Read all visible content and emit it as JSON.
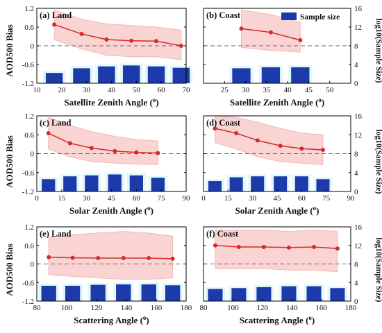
{
  "figure": {
    "left_ylabel": "AOD500 Bias",
    "right_ylabel": "log10(Sample Size)",
    "legend_label": "Sample size",
    "colors": {
      "line": "#d42a2a",
      "band": "#f6b6b6",
      "bar": "#1c3aa9",
      "cyan": "#c8f3f7",
      "dash": "#666666"
    }
  },
  "chart_data": [
    {
      "type": "line+bar",
      "title": "(a) Land",
      "xlabel": "Satellite Zenith Angle (o)",
      "xlim": [
        10,
        70
      ],
      "xticks": [
        10,
        20,
        30,
        40,
        50,
        60,
        70
      ],
      "ylim": [
        -1.2,
        1.2
      ],
      "yticks": [
        -1.2,
        -0.6,
        0,
        0.6,
        1.2
      ],
      "ytick_labels": [
        "-1.2",
        "-0.6",
        "0",
        "0.6",
        "1.2"
      ],
      "y2lim": [
        0,
        16
      ],
      "y2ticks": [
        0,
        4,
        8,
        12,
        16
      ],
      "x": [
        17,
        28,
        38,
        48,
        58,
        68
      ],
      "mean_bias": [
        0.68,
        0.38,
        0.2,
        0.16,
        0.15,
        0.0
      ],
      "band_upper": [
        1.15,
        0.85,
        0.7,
        0.65,
        0.6,
        0.5
      ],
      "band_lower": [
        0.2,
        -0.1,
        -0.3,
        -0.35,
        -0.35,
        -0.45
      ],
      "log10_sample_size": [
        2.2,
        3.2,
        3.6,
        3.8,
        3.6,
        3.3
      ],
      "show_legend": false
    },
    {
      "type": "line+bar",
      "title": "(b) Coast",
      "xlabel": "Satellite Zenith Angle (o)",
      "xlim": [
        20,
        55
      ],
      "xticks": [
        25,
        30,
        35,
        40,
        45,
        50
      ],
      "ylim": [
        -1.2,
        1.2
      ],
      "yticks": [
        -1.2,
        -0.6,
        0,
        0.6,
        1.2
      ],
      "y2lim": [
        0,
        16
      ],
      "y2ticks": [
        0,
        4,
        8,
        12,
        16
      ],
      "y2tick_labels": [
        "0",
        "4",
        "8",
        "12",
        "16"
      ],
      "x": [
        29,
        36,
        43
      ],
      "mean_bias": [
        0.55,
        0.43,
        0.18
      ],
      "band_upper": [
        1.15,
        1.0,
        0.75
      ],
      "band_lower": [
        -0.05,
        -0.15,
        -0.2
      ],
      "log10_sample_size": [
        3.2,
        3.4,
        3.4
      ],
      "show_legend": true
    },
    {
      "type": "line+bar",
      "title": "(c) Land",
      "xlabel": "Solar Zenith Angle (o)",
      "xlim": [
        0,
        90
      ],
      "xticks": [
        0,
        15,
        30,
        45,
        60,
        75,
        90
      ],
      "ylim": [
        -1.2,
        1.2
      ],
      "yticks": [
        -1.2,
        -0.6,
        0,
        0.6,
        1.2
      ],
      "ytick_labels": [
        "-1.2",
        "-0.6",
        "0",
        "0.6",
        "1.2"
      ],
      "y2lim": [
        0,
        16
      ],
      "y2ticks": [
        0,
        4,
        8,
        12,
        16
      ],
      "x": [
        7,
        20,
        33,
        47,
        60,
        73
      ],
      "mean_bias": [
        0.65,
        0.33,
        0.18,
        0.08,
        0.04,
        0.02
      ],
      "band_upper": [
        1.15,
        0.9,
        0.7,
        0.55,
        0.45,
        0.4
      ],
      "band_lower": [
        0.15,
        -0.1,
        -0.25,
        -0.3,
        -0.33,
        -0.35
      ],
      "log10_sample_size": [
        2.6,
        3.2,
        3.4,
        3.6,
        3.4,
        2.9
      ],
      "show_legend": false
    },
    {
      "type": "line+bar",
      "title": "(d) Coast",
      "xlabel": "Solar Zenith Angle (o)",
      "xlim": [
        0,
        90
      ],
      "xticks": [
        0,
        15,
        30,
        45,
        60,
        75,
        90
      ],
      "ylim": [
        -1.2,
        1.2
      ],
      "yticks": [
        -1.2,
        -0.6,
        0,
        0.6,
        1.2
      ],
      "y2lim": [
        0,
        16
      ],
      "y2ticks": [
        0,
        4,
        8,
        12,
        16
      ],
      "y2tick_labels": [
        "0",
        "4",
        "8",
        "12",
        "16"
      ],
      "x": [
        7,
        20,
        33,
        47,
        60,
        73
      ],
      "mean_bias": [
        0.8,
        0.65,
        0.42,
        0.25,
        0.16,
        0.12
      ],
      "band_upper": [
        1.2,
        1.15,
        1.0,
        0.8,
        0.65,
        0.6
      ],
      "band_lower": [
        0.35,
        0.15,
        -0.1,
        -0.25,
        -0.3,
        -0.35
      ],
      "log10_sample_size": [
        2.2,
        3.0,
        3.2,
        3.2,
        3.2,
        2.6
      ],
      "show_legend": false
    },
    {
      "type": "line+bar",
      "title": "(e) Land",
      "xlabel": "Scattering Angle (o)",
      "xlim": [
        80,
        180
      ],
      "xticks": [
        80,
        100,
        120,
        140,
        160,
        180
      ],
      "ylim": [
        -1.2,
        1.2
      ],
      "yticks": [
        -1.2,
        -0.6,
        0,
        0.6,
        1.2
      ],
      "ytick_labels": [
        "-1.2",
        "-0.6",
        "0",
        "0.6",
        "1.2"
      ],
      "y2lim": [
        0,
        16
      ],
      "y2ticks": [
        0,
        4,
        8,
        12,
        16
      ],
      "x": [
        88,
        104,
        121,
        138,
        155,
        171
      ],
      "mean_bias": [
        0.22,
        0.2,
        0.19,
        0.19,
        0.19,
        0.17
      ],
      "band_upper": [
        0.85,
        0.95,
        1.0,
        1.05,
        1.0,
        0.9
      ],
      "band_lower": [
        -0.35,
        -0.4,
        -0.45,
        -0.5,
        -0.5,
        -0.45
      ],
      "log10_sample_size": [
        3.3,
        3.3,
        3.5,
        3.6,
        3.6,
        3.4
      ],
      "show_legend": false
    },
    {
      "type": "line+bar",
      "title": "(f) Coast",
      "xlabel": "Scattering Angle (o)",
      "xlim": [
        80,
        180
      ],
      "xticks": [
        80,
        100,
        120,
        140,
        160,
        180
      ],
      "ylim": [
        -1.2,
        1.2
      ],
      "yticks": [
        -1.2,
        -0.6,
        0,
        0.6,
        1.2
      ],
      "y2lim": [
        0,
        16
      ],
      "y2ticks": [
        0,
        4,
        8,
        12,
        16
      ],
      "y2tick_labels": [
        "0",
        "4",
        "8",
        "12",
        "16"
      ],
      "x": [
        88,
        104,
        121,
        138,
        155,
        171
      ],
      "mean_bias": [
        0.6,
        0.55,
        0.55,
        0.53,
        0.55,
        0.5
      ],
      "band_upper": [
        1.1,
        1.1,
        1.1,
        1.05,
        1.1,
        1.05
      ],
      "band_lower": [
        -0.15,
        -0.15,
        -0.15,
        -0.2,
        -0.2,
        -0.25
      ],
      "log10_sample_size": [
        2.6,
        2.8,
        3.0,
        3.2,
        3.2,
        2.8
      ],
      "show_legend": false
    }
  ]
}
